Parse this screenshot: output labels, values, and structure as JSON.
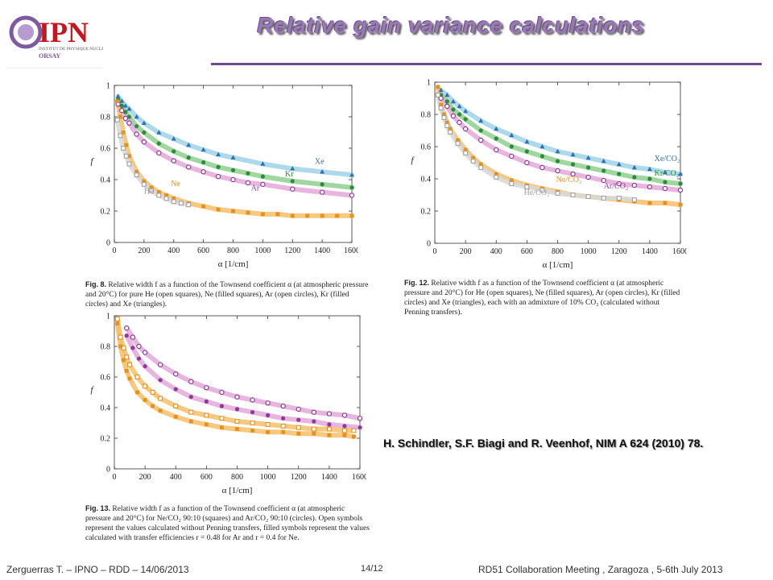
{
  "slide": {
    "title": "Relative gain variance calculations",
    "logo": {
      "text": "IPN",
      "line1": "INSTITUT DE PHYSIQUE NUCLÉAIRE",
      "line2": "ORSAY"
    },
    "reference": "H. Schindler, S.F. Biagi and R. Veenhof, NIM A  624 (2010) 78.",
    "footer_left": "Zerguerras T. – IPNO – RDD – 14/06/2013",
    "page_number": "14/12",
    "footer_right": "RD51 Collaboration Meeting , Zaragoza , 5-6th July 2013"
  },
  "captions": {
    "fig8": {
      "label": "Fig. 8.",
      "text": "Relative width f as a function of the Townsend coefficient α (at atmospheric pressure and 20°C) for pure He (open squares), Ne (filled squares), Ar (open circles), Kr (filled circles) and Xe (triangles)."
    },
    "fig12": {
      "label": "Fig. 12.",
      "text": "Relative width f as a function of the Townsend coefficient α (at atmospheric pressure and 20°C) for He (open squares), Ne (filled squares), Ar (open circles), Kr (filled circles) and Xe (triangles), each with an admixture of 10% CO₂ (calculated without Penning transfers)."
    },
    "fig13": {
      "label": "Fig. 13.",
      "text": "Relative width f as a function of the Townsend coefficient α (at atmospheric pressure and 20°C) for Ne/CO₂ 90:10 (squares) and Ar/CO₂ 90:10 (circles). Open symbols represent the values calculated without Penning transfers, filled symbols represent the values calculated with transfer efficiencies r = 0.48 for Ar and r = 0.4 for Ne."
    }
  },
  "colors": {
    "Xe": "#2e6fb5",
    "Kr": "#2e8b3a",
    "Ar": "#8e3a9a",
    "Ne": "#e8901a",
    "He": "#a0a0a0",
    "band_Xe": "#9ed3e6",
    "band_Kr": "#8fd08f",
    "band_Ar": "#e3a8d8",
    "band_Ne": "#f6c06a",
    "band_He": "#d8d8d8"
  },
  "chart_data": [
    {
      "type": "scatter",
      "id": "fig8",
      "xlabel": "α [1/cm]",
      "ylabel": "f",
      "xlim": [
        0,
        1600
      ],
      "ylim": [
        0,
        1
      ],
      "xticks": [
        0,
        200,
        400,
        600,
        800,
        1000,
        1200,
        1400,
        1600
      ],
      "yticks": [
        0,
        0.2,
        0.4,
        0.6,
        0.8,
        1
      ],
      "series": [
        {
          "name": "Xe",
          "marker": "triangle",
          "color_key": "Xe",
          "x": [
            25,
            50,
            75,
            100,
            150,
            200,
            300,
            400,
            500,
            600,
            700,
            800,
            1000,
            1200,
            1400,
            1600
          ],
          "y": [
            0.93,
            0.9,
            0.87,
            0.85,
            0.8,
            0.76,
            0.7,
            0.66,
            0.62,
            0.59,
            0.56,
            0.54,
            0.5,
            0.47,
            0.45,
            0.43
          ]
        },
        {
          "name": "Kr",
          "marker": "circle-filled",
          "color_key": "Kr",
          "x": [
            25,
            50,
            75,
            100,
            150,
            200,
            300,
            400,
            500,
            600,
            700,
            800,
            900,
            1000,
            1200,
            1400,
            1600
          ],
          "y": [
            0.91,
            0.87,
            0.83,
            0.8,
            0.74,
            0.7,
            0.63,
            0.58,
            0.54,
            0.51,
            0.48,
            0.46,
            0.44,
            0.42,
            0.39,
            0.37,
            0.35
          ]
        },
        {
          "name": "Ar",
          "marker": "circle-open",
          "color_key": "Ar",
          "x": [
            25,
            50,
            75,
            100,
            150,
            200,
            300,
            400,
            500,
            600,
            700,
            800,
            900,
            1000,
            1200,
            1400,
            1600
          ],
          "y": [
            0.88,
            0.84,
            0.79,
            0.76,
            0.69,
            0.64,
            0.57,
            0.52,
            0.48,
            0.45,
            0.42,
            0.4,
            0.38,
            0.37,
            0.34,
            0.32,
            0.3
          ]
        },
        {
          "name": "Ne",
          "marker": "square-filled",
          "color_key": "Ne",
          "x": [
            20,
            40,
            60,
            80,
            100,
            150,
            200,
            250,
            300,
            350,
            400,
            500,
            600,
            700,
            800,
            900,
            1000,
            1100,
            1200,
            1300,
            1400,
            1500,
            1600
          ],
          "y": [
            0.9,
            0.8,
            0.7,
            0.62,
            0.55,
            0.45,
            0.39,
            0.35,
            0.32,
            0.3,
            0.28,
            0.25,
            0.23,
            0.21,
            0.2,
            0.19,
            0.18,
            0.18,
            0.17,
            0.17,
            0.17,
            0.17,
            0.17
          ]
        },
        {
          "name": "He",
          "marker": "square-open",
          "color_key": "He",
          "x": [
            20,
            40,
            60,
            80,
            100,
            150,
            200,
            250,
            300,
            350,
            400,
            450,
            500
          ],
          "y": [
            0.78,
            0.68,
            0.6,
            0.55,
            0.5,
            0.43,
            0.37,
            0.33,
            0.3,
            0.28,
            0.26,
            0.25,
            0.24
          ]
        }
      ],
      "series_labels": [
        {
          "text": "Xe",
          "x": 1350,
          "y": 0.5,
          "color_key": "Xe"
        },
        {
          "text": "Kr",
          "x": 1150,
          "y": 0.42,
          "color_key": "Kr"
        },
        {
          "text": "Ar",
          "x": 920,
          "y": 0.33,
          "color_key": "Ar"
        },
        {
          "text": "Ne",
          "x": 380,
          "y": 0.36,
          "color_key": "Ne"
        },
        {
          "text": "He",
          "x": 200,
          "y": 0.31,
          "color_key": "He"
        }
      ]
    },
    {
      "type": "scatter",
      "id": "fig12",
      "xlabel": "α [1/cm]",
      "ylabel": "f",
      "xlim": [
        0,
        1600
      ],
      "ylim": [
        0,
        1
      ],
      "xticks": [
        0,
        200,
        400,
        600,
        800,
        1000,
        1200,
        1400,
        1600
      ],
      "yticks": [
        0,
        0.2,
        0.4,
        0.6,
        0.8,
        1
      ],
      "series": [
        {
          "name": "Xe/CO₂",
          "marker": "triangle",
          "color_key": "Xe",
          "x": [
            40,
            80,
            120,
            160,
            200,
            300,
            400,
            500,
            600,
            700,
            800,
            900,
            1000,
            1100,
            1200,
            1300,
            1400,
            1500,
            1600
          ],
          "y": [
            0.95,
            0.92,
            0.88,
            0.85,
            0.82,
            0.76,
            0.71,
            0.67,
            0.63,
            0.6,
            0.57,
            0.55,
            0.53,
            0.51,
            0.49,
            0.47,
            0.46,
            0.44,
            0.43
          ]
        },
        {
          "name": "Kr/CO₂",
          "marker": "circle-filled",
          "color_key": "Kr",
          "x": [
            40,
            80,
            120,
            160,
            200,
            300,
            400,
            500,
            600,
            700,
            800,
            900,
            1000,
            1100,
            1200,
            1300,
            1400,
            1500,
            1600
          ],
          "y": [
            0.92,
            0.88,
            0.83,
            0.8,
            0.77,
            0.7,
            0.65,
            0.6,
            0.57,
            0.54,
            0.51,
            0.49,
            0.47,
            0.45,
            0.43,
            0.41,
            0.4,
            0.38,
            0.37
          ]
        },
        {
          "name": "Ar/CO₂",
          "marker": "circle-open",
          "color_key": "Ar",
          "x": [
            40,
            80,
            120,
            160,
            200,
            300,
            400,
            500,
            600,
            700,
            800,
            900,
            1000,
            1100,
            1200,
            1300,
            1400,
            1500,
            1600
          ],
          "y": [
            0.9,
            0.85,
            0.79,
            0.75,
            0.71,
            0.64,
            0.58,
            0.54,
            0.5,
            0.47,
            0.45,
            0.43,
            0.41,
            0.39,
            0.37,
            0.36,
            0.35,
            0.34,
            0.33
          ]
        },
        {
          "name": "Ne/CO₂",
          "marker": "square-filled",
          "color_key": "Ne",
          "x": [
            20,
            40,
            60,
            80,
            100,
            150,
            200,
            250,
            300,
            400,
            500,
            600,
            700,
            800,
            900,
            1000,
            1100,
            1200,
            1300,
            1400,
            1500,
            1600
          ],
          "y": [
            0.97,
            0.86,
            0.8,
            0.75,
            0.71,
            0.64,
            0.58,
            0.53,
            0.49,
            0.43,
            0.39,
            0.36,
            0.34,
            0.32,
            0.3,
            0.29,
            0.28,
            0.27,
            0.26,
            0.25,
            0.25,
            0.24
          ]
        },
        {
          "name": "He/CO₂",
          "marker": "square-open",
          "color_key": "He",
          "x": [
            20,
            40,
            60,
            80,
            100,
            150,
            200,
            250,
            300,
            400,
            500,
            600,
            700,
            800,
            900,
            1000,
            1100,
            1200,
            1300
          ],
          "y": [
            0.92,
            0.84,
            0.78,
            0.73,
            0.69,
            0.62,
            0.56,
            0.51,
            0.47,
            0.41,
            0.37,
            0.35,
            0.33,
            0.31,
            0.3,
            0.29,
            0.28,
            0.28,
            0.27
          ]
        }
      ],
      "series_labels": [
        {
          "text": "Xe/CO₂",
          "x": 1430,
          "y": 0.51,
          "color_key": "Xe"
        },
        {
          "text": "Kr/CO₂",
          "x": 1430,
          "y": 0.42,
          "color_key": "Kr"
        },
        {
          "text": "Ar/CO₂",
          "x": 1100,
          "y": 0.34,
          "color_key": "Ar"
        },
        {
          "text": "Ne/CO₂",
          "x": 790,
          "y": 0.38,
          "color_key": "Ne"
        },
        {
          "text": "He/CO₂",
          "x": 580,
          "y": 0.3,
          "color_key": "He"
        }
      ]
    },
    {
      "type": "scatter",
      "id": "fig13",
      "xlabel": "α [1/cm]",
      "ylabel": "f",
      "xlim": [
        0,
        1600
      ],
      "ylim": [
        0,
        1
      ],
      "xticks": [
        0,
        200,
        400,
        600,
        800,
        1000,
        1200,
        1400,
        1600
      ],
      "yticks": [
        0,
        0.2,
        0.4,
        0.6,
        0.8,
        1
      ],
      "series": [
        {
          "name": "Ar/CO₂ open",
          "marker": "circle-open",
          "color_key": "Ar",
          "x": [
            80,
            120,
            160,
            200,
            300,
            400,
            500,
            600,
            700,
            800,
            900,
            1000,
            1100,
            1200,
            1300,
            1400,
            1500,
            1600
          ],
          "y": [
            0.92,
            0.86,
            0.8,
            0.76,
            0.68,
            0.62,
            0.57,
            0.53,
            0.5,
            0.47,
            0.45,
            0.43,
            0.41,
            0.39,
            0.37,
            0.36,
            0.35,
            0.33
          ]
        },
        {
          "name": "Ar/CO₂ filled",
          "marker": "circle-filled",
          "color_key": "Ar",
          "x": [
            80,
            120,
            160,
            200,
            300,
            400,
            500,
            600,
            700,
            800,
            900,
            1000,
            1100,
            1200,
            1300,
            1400,
            1500,
            1600
          ],
          "y": [
            0.87,
            0.79,
            0.72,
            0.67,
            0.58,
            0.52,
            0.47,
            0.44,
            0.41,
            0.39,
            0.37,
            0.35,
            0.33,
            0.32,
            0.31,
            0.29,
            0.28,
            0.27
          ]
        },
        {
          "name": "Ne/CO₂ open",
          "marker": "square-open",
          "color_key": "Ne",
          "x": [
            20,
            40,
            60,
            80,
            100,
            150,
            200,
            250,
            300,
            400,
            500,
            600,
            700,
            800,
            900,
            1000,
            1100,
            1200,
            1300,
            1400,
            1500,
            1560
          ],
          "y": [
            0.98,
            0.86,
            0.79,
            0.73,
            0.68,
            0.6,
            0.54,
            0.5,
            0.46,
            0.41,
            0.37,
            0.35,
            0.33,
            0.31,
            0.3,
            0.29,
            0.28,
            0.27,
            0.26,
            0.26,
            0.25,
            0.25
          ]
        },
        {
          "name": "Ne/CO₂ filled",
          "marker": "square-filled",
          "color_key": "Ne",
          "x": [
            20,
            40,
            60,
            80,
            100,
            150,
            200,
            250,
            300,
            400,
            500,
            600,
            700,
            800,
            900,
            1000,
            1100,
            1200,
            1300,
            1400,
            1500,
            1560
          ],
          "y": [
            0.95,
            0.8,
            0.71,
            0.64,
            0.59,
            0.5,
            0.45,
            0.41,
            0.38,
            0.34,
            0.31,
            0.29,
            0.27,
            0.26,
            0.25,
            0.24,
            0.24,
            0.23,
            0.23,
            0.22,
            0.22,
            0.21
          ]
        }
      ]
    }
  ]
}
